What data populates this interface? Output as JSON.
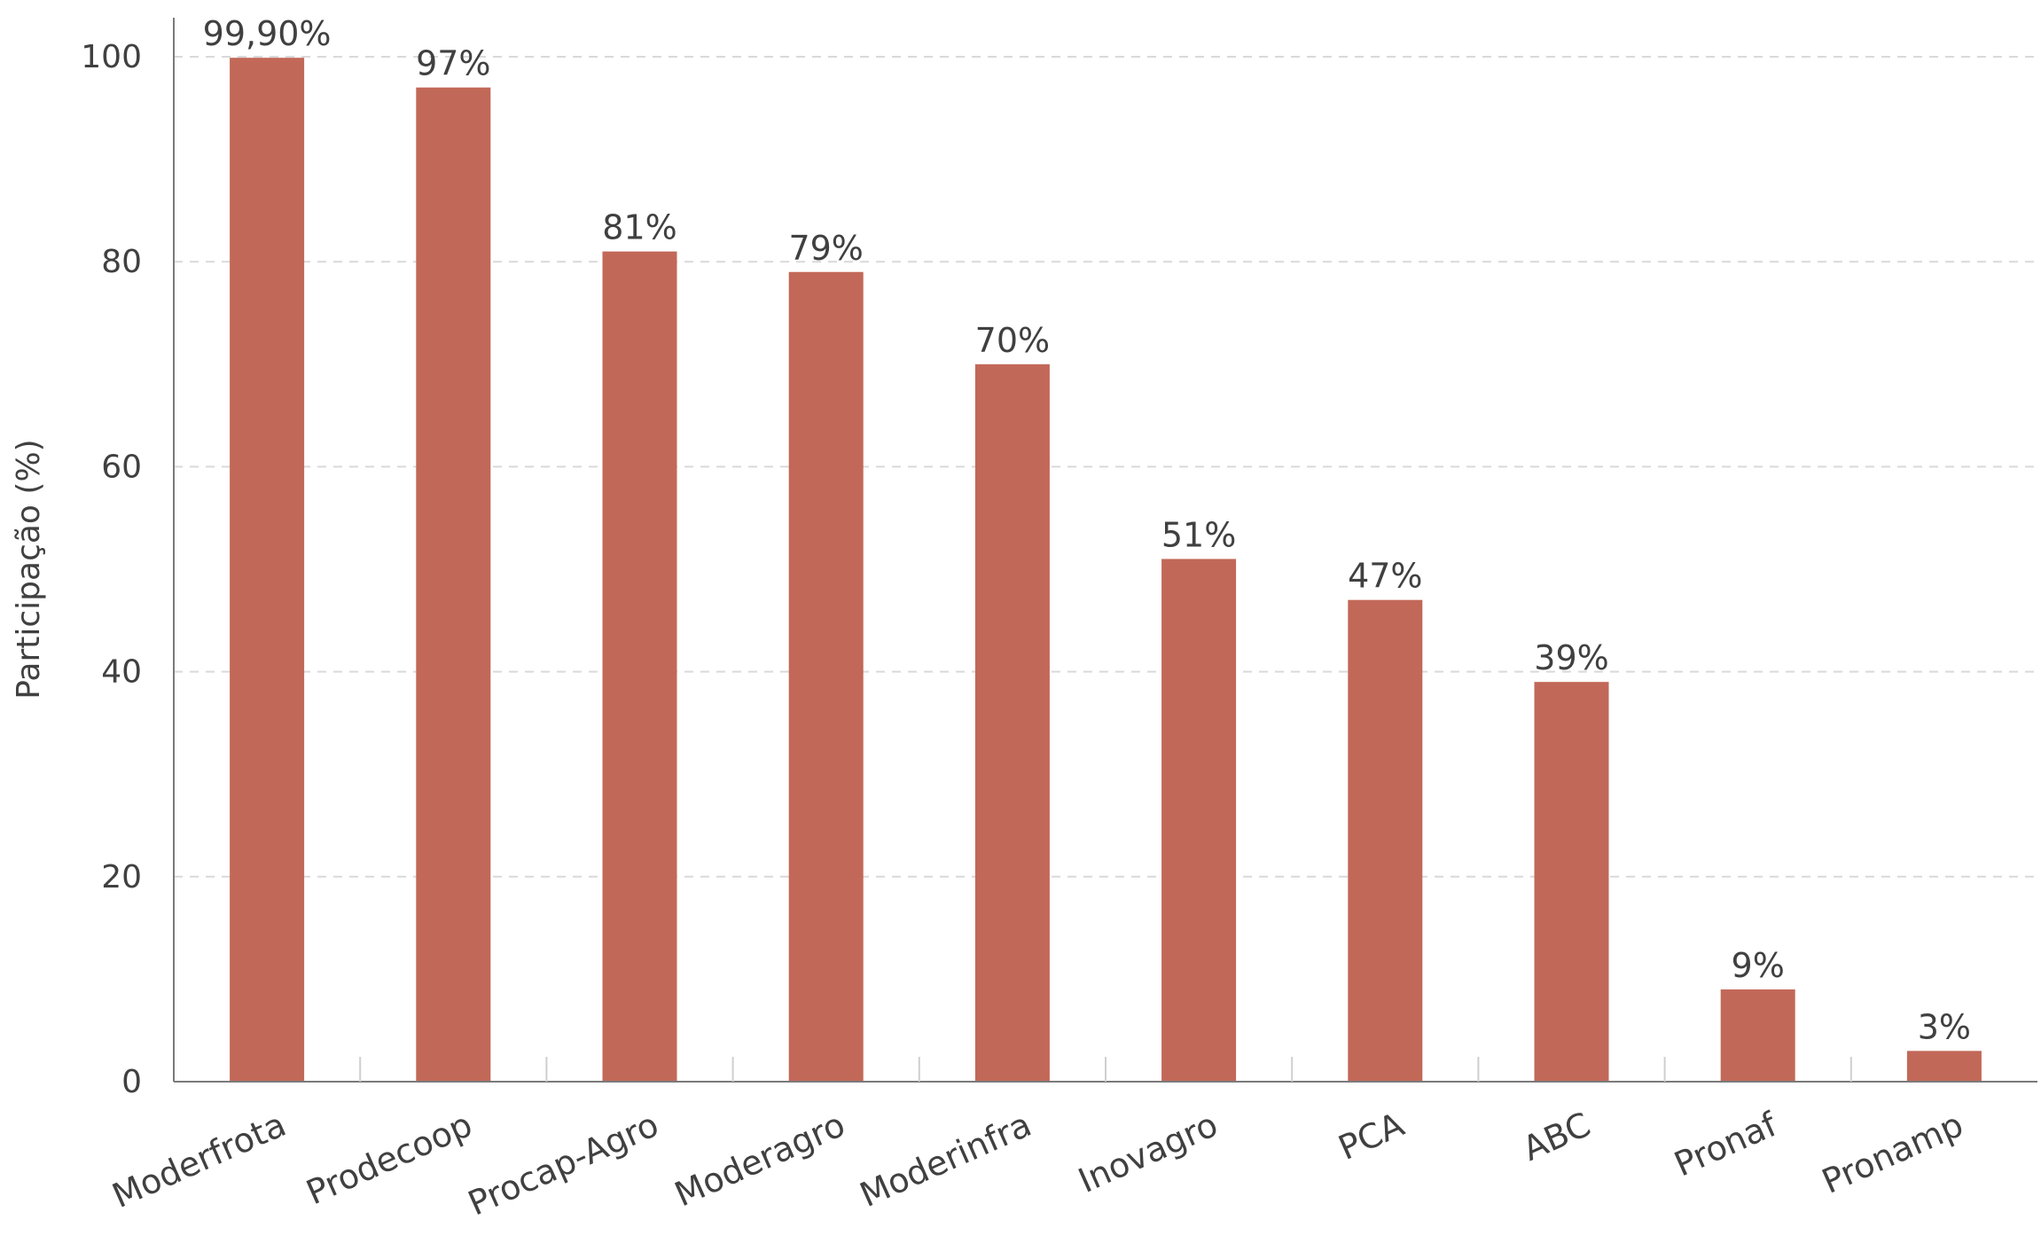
{
  "chart_data": {
    "type": "bar",
    "title": "",
    "xlabel": "",
    "ylabel": "Participação (%)",
    "ylim": [
      0,
      100
    ],
    "yticks": [
      0,
      20,
      40,
      60,
      80,
      100
    ],
    "grid": true,
    "categories": [
      "Moderfrota",
      "Prodecoop",
      "Procap-Agro",
      "Moderagro",
      "Moderinfra",
      "Inovagro",
      "PCA",
      "ABC",
      "Pronaf",
      "Pronamp"
    ],
    "values": [
      99.9,
      97,
      81,
      79,
      70,
      51,
      47,
      39,
      9,
      3
    ],
    "value_labels": [
      "99,90%",
      "97%",
      "81%",
      "79%",
      "70%",
      "51%",
      "47%",
      "39%",
      "9%",
      "3%"
    ],
    "colors": {
      "bar": "#c26858",
      "axis": "#7a7a7a",
      "grid": "#d9d9d9",
      "text": "#404040"
    }
  }
}
